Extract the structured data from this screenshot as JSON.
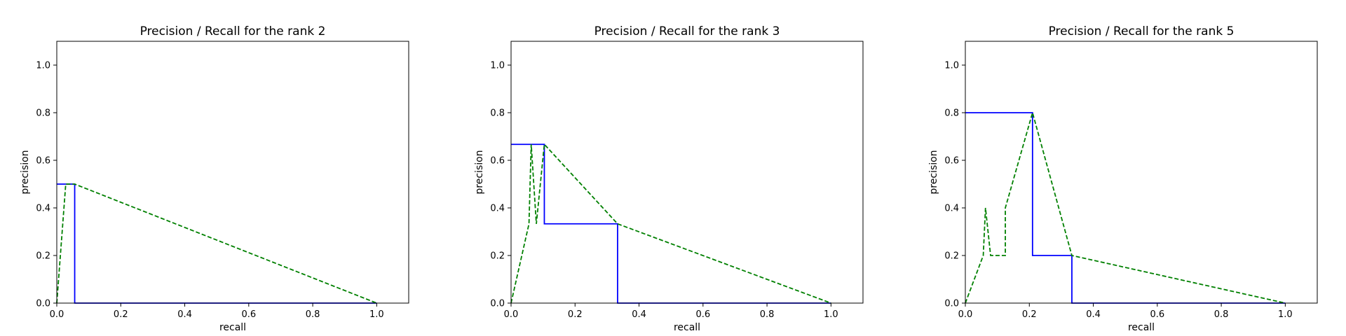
{
  "chart_data": [
    {
      "type": "line",
      "title": "Precision / Recall for the rank 2",
      "xlabel": "recall",
      "ylabel": "precision",
      "xlim": [
        0,
        1.1
      ],
      "ylim": [
        0,
        1.1
      ],
      "xticks": [
        "0.0",
        "0.2",
        "0.4",
        "0.6",
        "0.8",
        "1.0"
      ],
      "yticks": [
        "0.0",
        "0.2",
        "0.4",
        "0.6",
        "0.8",
        "1.0"
      ],
      "grid": false,
      "series": [
        {
          "style": "solid",
          "color": "#0000ff",
          "x": [
            0,
            0.056,
            0.056,
            1.0
          ],
          "y": [
            0.5,
            0.5,
            0,
            0
          ]
        },
        {
          "style": "dashed",
          "color": "#008000",
          "x": [
            0,
            0.028,
            0.056,
            1.0
          ],
          "y": [
            0,
            0.5,
            0.5,
            0
          ]
        }
      ]
    },
    {
      "type": "line",
      "title": "Precision / Recall for the rank 3",
      "xlabel": "recall",
      "ylabel": "precision",
      "xlim": [
        0,
        1.1
      ],
      "ylim": [
        0,
        1.1
      ],
      "xticks": [
        "0.0",
        "0.2",
        "0.4",
        "0.6",
        "0.8",
        "1.0"
      ],
      "yticks": [
        "0.0",
        "0.2",
        "0.4",
        "0.6",
        "0.8",
        "1.0"
      ],
      "grid": false,
      "series": [
        {
          "style": "solid",
          "color": "#0000ff",
          "x": [
            0,
            0.104,
            0.104,
            0.333,
            0.333,
            1.0
          ],
          "y": [
            0.667,
            0.667,
            0.333,
            0.333,
            0,
            0
          ]
        },
        {
          "style": "dashed",
          "color": "#008000",
          "x": [
            0,
            0.056,
            0.063,
            0.079,
            0.104,
            0.333,
            1.0
          ],
          "y": [
            0,
            0.333,
            0.667,
            0.333,
            0.667,
            0.333,
            0
          ]
        }
      ]
    },
    {
      "type": "line",
      "title": "Precision / Recall for the rank 5",
      "xlabel": "recall",
      "ylabel": "precision",
      "xlim": [
        0,
        1.1
      ],
      "ylim": [
        0,
        1.1
      ],
      "xticks": [
        "0.0",
        "0.2",
        "0.4",
        "0.6",
        "0.8",
        "1.0"
      ],
      "yticks": [
        "0.0",
        "0.2",
        "0.4",
        "0.6",
        "0.8",
        "1.0"
      ],
      "grid": false,
      "series": [
        {
          "style": "solid",
          "color": "#0000ff",
          "x": [
            0,
            0.21,
            0.21,
            0.333,
            0.333,
            1.0
          ],
          "y": [
            0.8,
            0.8,
            0.2,
            0.2,
            0,
            0
          ]
        },
        {
          "style": "dashed",
          "color": "#008000",
          "x": [
            0,
            0.056,
            0.063,
            0.079,
            0.125,
            0.125,
            0.21,
            0.333,
            1.0
          ],
          "y": [
            0,
            0.2,
            0.4,
            0.2,
            0.2,
            0.4,
            0.8,
            0.2,
            0
          ]
        }
      ]
    }
  ]
}
